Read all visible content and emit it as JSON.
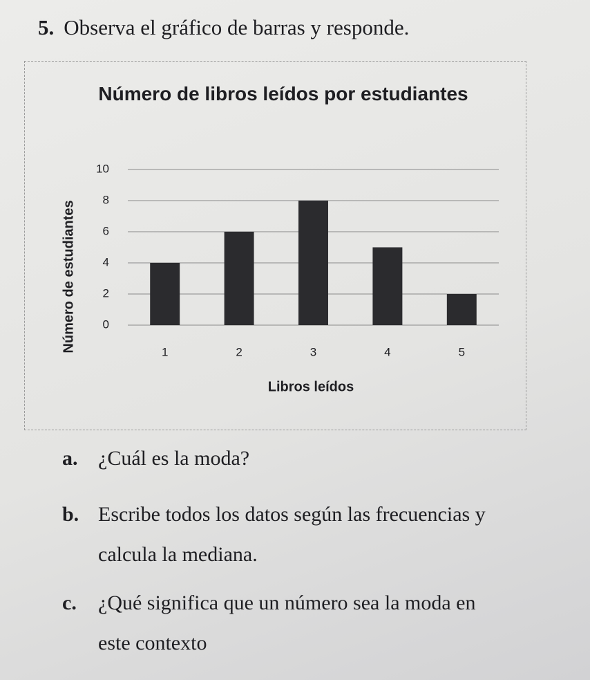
{
  "problem": {
    "number": "5.",
    "instruction": "Observa el gráfico de barras y responde."
  },
  "chart_data": {
    "type": "bar",
    "title": "Número de libros leídos por estudiantes",
    "x_label": "Libros leídos",
    "y_label": "Número de estudiantes",
    "categories": [
      "1",
      "2",
      "3",
      "4",
      "5"
    ],
    "values": [
      4,
      6,
      8,
      5,
      2
    ],
    "color": "#2b2b2e",
    "ylim": [
      0,
      10
    ],
    "yticks": [
      0,
      2,
      4,
      6,
      8,
      10
    ],
    "grid": true
  },
  "questions": [
    {
      "letter": "a.",
      "text": "¿Cuál es la moda?"
    },
    {
      "letter": "b.",
      "text": "Escribe todos los datos según las frecuencias y calcula la mediana."
    },
    {
      "letter": "c.",
      "text": "¿Qué significa que un número sea la moda en este contexto"
    }
  ]
}
